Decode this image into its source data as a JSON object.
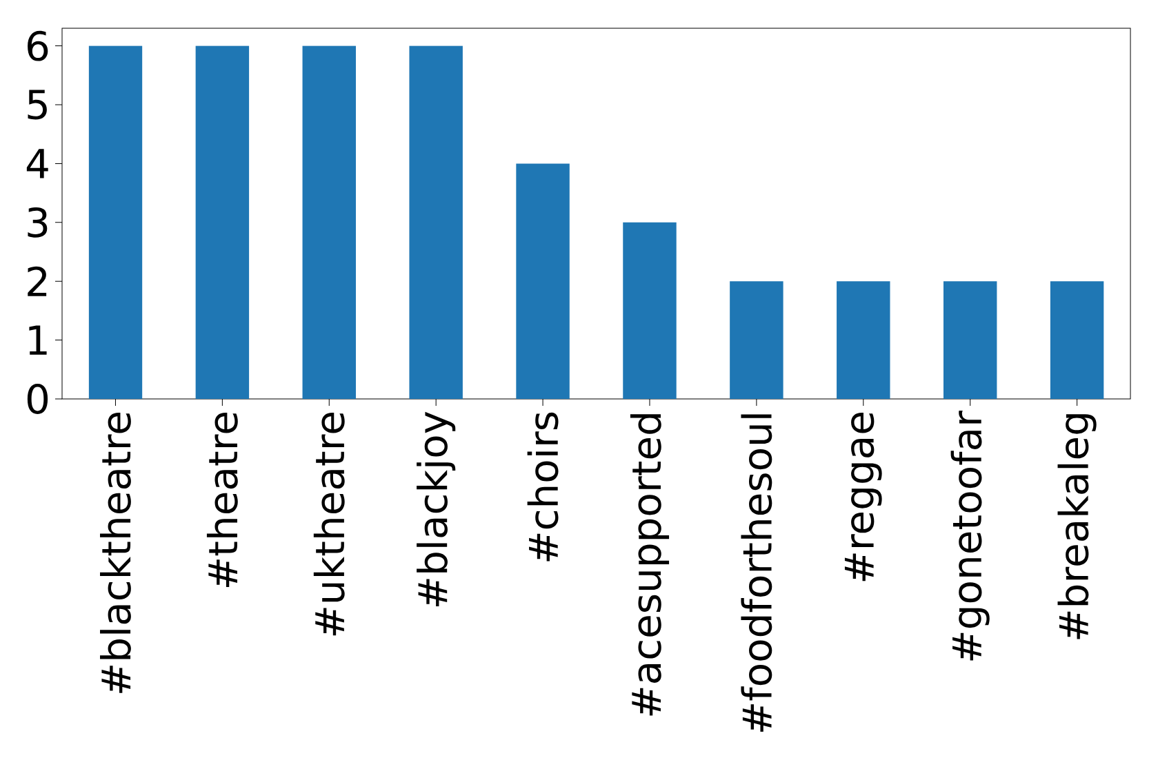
{
  "chart_data": {
    "type": "bar",
    "categories": [
      "#blacktheatre",
      "#theatre",
      "#uktheatre",
      "#blackjoy",
      "#choirs",
      "#acesupported",
      "#foodforthesoul",
      "#reggae",
      "#gonetoofar",
      "#breakaleg"
    ],
    "values": [
      6,
      6,
      6,
      6,
      4,
      3,
      2,
      2,
      2,
      2
    ],
    "color": "#1f77b4",
    "ylim": [
      0,
      6.3
    ],
    "yticks": [
      0,
      1,
      2,
      3,
      4,
      5,
      6
    ],
    "grid": false
  }
}
